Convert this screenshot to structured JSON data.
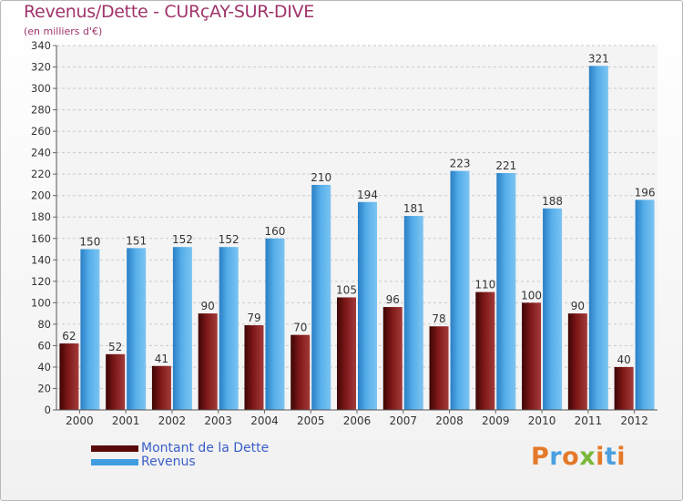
{
  "header": {
    "title": "Revenus/Dette - CURçAY-SUR-DIVE",
    "subtitle": "(en milliers d'€)"
  },
  "colors": {
    "debt": "#7a1414",
    "revenue": "#4ba7e6",
    "title": "#a0346b",
    "legend_text": "#3a5ec8"
  },
  "legend": [
    {
      "label": "Montant de la Dette",
      "color": "#5a0a0a"
    },
    {
      "label": "Revenus",
      "color": "#3f9de0"
    }
  ],
  "logo": {
    "text": "Proxiti",
    "letter_colors": [
      "#e4792a",
      "#4a9fe0",
      "#e4792a",
      "#7ab83a",
      "#e4792a",
      "#4a9fe0",
      "#e4792a"
    ]
  },
  "chart_data": {
    "type": "bar",
    "categories": [
      "2000",
      "2001",
      "2002",
      "2003",
      "2004",
      "2005",
      "2006",
      "2007",
      "2008",
      "2009",
      "2010",
      "2011",
      "2012"
    ],
    "series": [
      {
        "name": "Montant de la Dette",
        "values": [
          62,
          52,
          41,
          90,
          79,
          70,
          105,
          96,
          78,
          110,
          100,
          90,
          40
        ]
      },
      {
        "name": "Revenus",
        "values": [
          150,
          151,
          152,
          152,
          160,
          210,
          194,
          181,
          223,
          221,
          188,
          321,
          196
        ]
      }
    ],
    "ylim": [
      0,
      340
    ],
    "yticks": [
      0,
      20,
      40,
      60,
      80,
      100,
      120,
      140,
      160,
      180,
      200,
      220,
      240,
      260,
      280,
      300,
      320,
      340
    ],
    "grid": true
  }
}
